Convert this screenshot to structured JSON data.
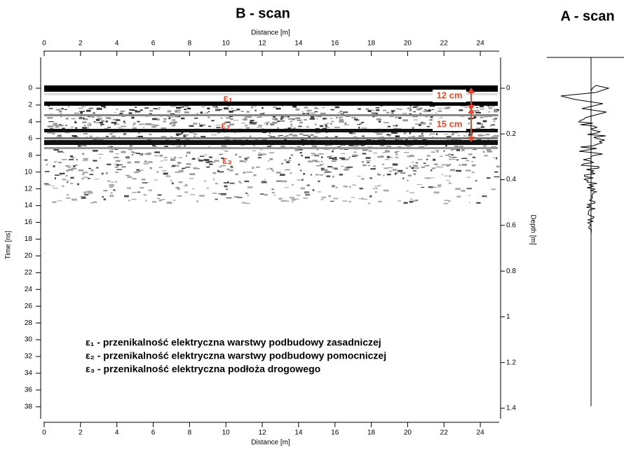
{
  "bscan": {
    "title": "B - scan",
    "x_label": "Distance [m]",
    "xticks": [
      0,
      2,
      4,
      6,
      8,
      10,
      12,
      14,
      16,
      18,
      20,
      22,
      24
    ],
    "y_label": "Time [ns]",
    "yticks": [
      0,
      2,
      4,
      6,
      8,
      10,
      12,
      14,
      16,
      18,
      20,
      22,
      24,
      26,
      28,
      30,
      32,
      34,
      36,
      38
    ],
    "y2_label": "Depth [m]",
    "y2ticks": [
      0,
      0.2,
      0.4,
      0.6,
      0.8,
      1,
      1.2,
      1.4
    ],
    "layer_labels": [
      "ε₁",
      "ε₂",
      "ε₃"
    ],
    "thickness_labels": [
      "12 cm",
      "15 cm"
    ],
    "legend": [
      "ε₁ - przenikalność elektryczna warstwy podbudowy zasadniczej",
      "ε₂ - przenikalność elektryczna warstwy podbudowy pomocniczej",
      "ε₃ - przenikalność elektryczna podłoża drogowego"
    ]
  },
  "ascan": {
    "title": "A - scan"
  }
}
